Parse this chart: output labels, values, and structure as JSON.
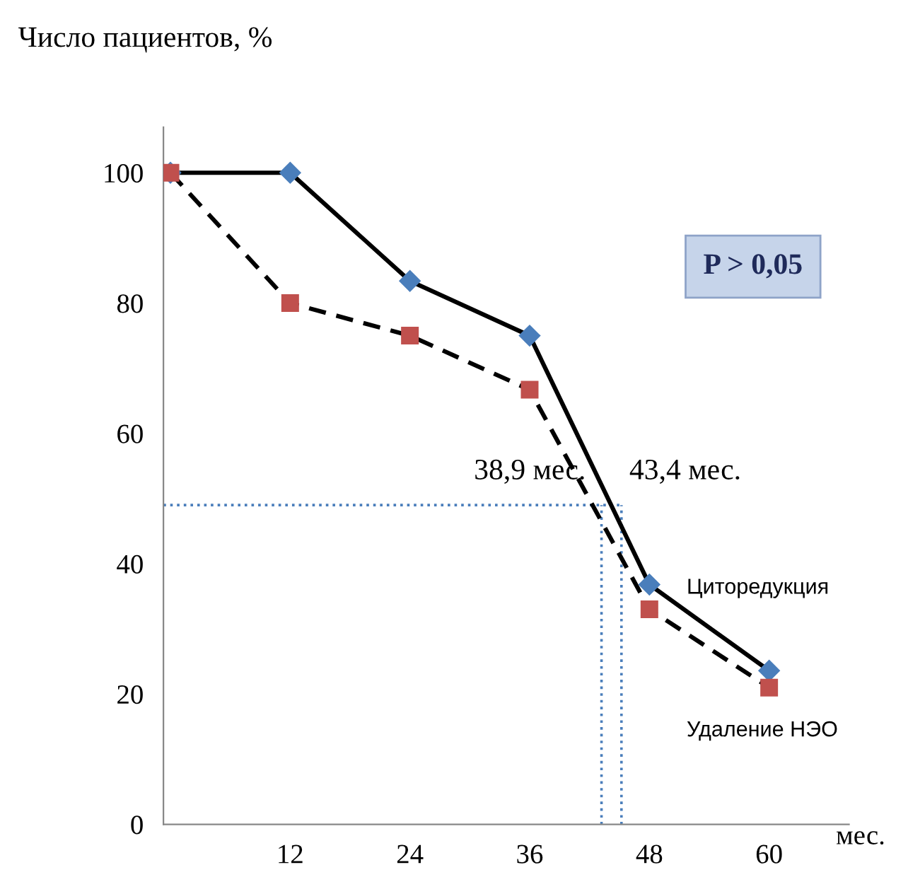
{
  "chart_data": {
    "type": "line",
    "ylabel": "Число пациентов, %",
    "xlabel": "мес.",
    "x": [
      0,
      12,
      24,
      36,
      48,
      60
    ],
    "series": [
      {
        "name": "Циторедукция",
        "color": "#4a7ebb",
        "marker": "diamond",
        "line_style": "solid",
        "values": [
          100,
          100,
          83.4,
          75,
          36.8,
          23.6
        ]
      },
      {
        "name": "Удаление НЭО",
        "color": "#c0504d",
        "marker": "square",
        "line_style": "dashed",
        "values": [
          100,
          80,
          75,
          66.7,
          33,
          21
        ]
      }
    ],
    "xlim": [
      -0.7,
      68
    ],
    "xticks": [
      12,
      24,
      36,
      48,
      60
    ],
    "ylim": [
      0,
      107
    ],
    "yticks": [
      0,
      20,
      40,
      60,
      80,
      100
    ],
    "ref_lines": [
      {
        "axis": "y",
        "value": 49,
        "color": "#4a7ebb",
        "line_style": "dotted"
      },
      {
        "axis": "x",
        "value": 43.2,
        "color": "#4a7ebb",
        "line_style": "dotted"
      },
      {
        "axis": "x",
        "value": 45.2,
        "color": "#4a7ebb",
        "line_style": "dotted"
      }
    ],
    "annotations": [
      {
        "text": "38,9 мес.",
        "x": 43.2,
        "y": 49
      },
      {
        "text": "43,4 мес.",
        "x": 45.2,
        "y": 49
      },
      "P > 0,05"
    ],
    "grid": false
  }
}
